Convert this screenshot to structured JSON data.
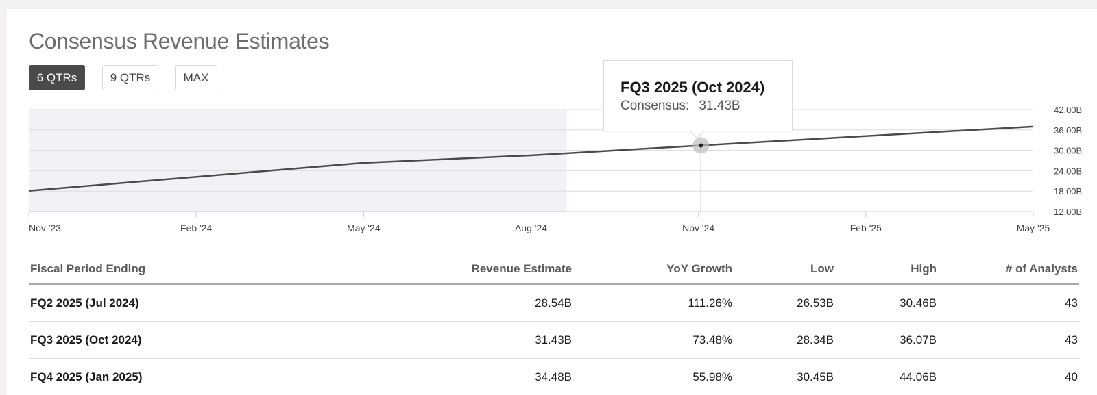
{
  "title": "Consensus Revenue Estimates",
  "range_buttons": [
    {
      "label": "6 QTRs",
      "active": true
    },
    {
      "label": "9 QTRs",
      "active": false
    },
    {
      "label": "MAX",
      "active": false
    }
  ],
  "tooltip": {
    "title": "FQ3 2025 (Oct 2024)",
    "label": "Consensus:",
    "value": "31.43B"
  },
  "colors": {
    "line": "#4a4a4a",
    "actual_band": "#f1f2f6",
    "gridline": "#dcdcdc",
    "active_button": "#4a4a4a"
  },
  "chart_data": {
    "type": "line",
    "title": "",
    "series": [
      {
        "x": [
          "2023-11-01",
          "2024-05-01",
          "2024-08-01",
          "2024-11-01",
          "2025-05-01"
        ],
        "y": [
          18.1,
          26.3,
          28.54,
          31.43,
          37.0
        ]
      }
    ],
    "x_ticks": [
      "Nov '23",
      "Feb '24",
      "May '24",
      "Aug '24",
      "Nov '24",
      "Feb '25",
      "May '25"
    ],
    "y_ticks": [
      "42.00B",
      "36.00B",
      "30.00B",
      "24.00B",
      "18.00B",
      "12.00B"
    ],
    "ylim": [
      12,
      42
    ],
    "xlim": [
      "2023-11-01",
      "2025-05-01"
    ],
    "y_axis_side": "right",
    "grid": true,
    "shaded_region_x": [
      "2023-11-01",
      "2024-08-20"
    ],
    "highlight_point": {
      "x": "2024-11-01",
      "y": 31.43
    }
  },
  "table": {
    "headers": [
      "Fiscal Period Ending",
      "Revenue Estimate",
      "YoY Growth",
      "Low",
      "High",
      "# of Analysts"
    ],
    "rows": [
      [
        "FQ2 2025 (Jul 2024)",
        "28.54B",
        "111.26%",
        "26.53B",
        "30.46B",
        "43"
      ],
      [
        "FQ3 2025 (Oct 2024)",
        "31.43B",
        "73.48%",
        "28.34B",
        "36.07B",
        "43"
      ],
      [
        "FQ4 2025 (Jan 2025)",
        "34.48B",
        "55.98%",
        "30.45B",
        "44.06B",
        "40"
      ]
    ]
  }
}
